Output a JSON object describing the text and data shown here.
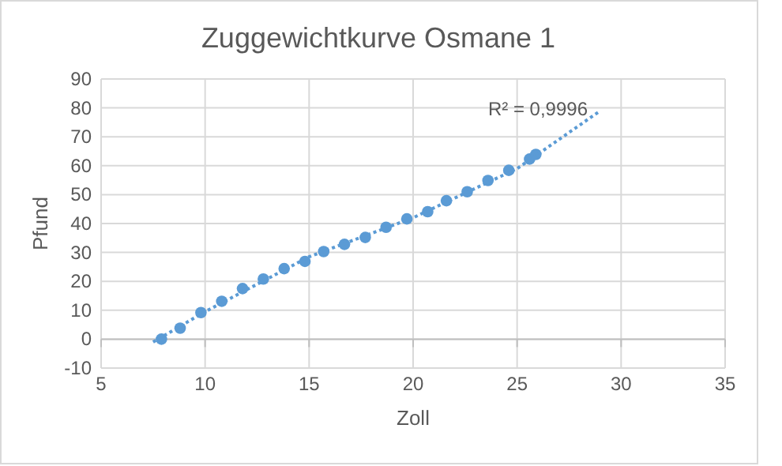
{
  "chart_data": {
    "type": "scatter",
    "title": "Zuggewichtkurve Osmane 1",
    "xlabel": "Zoll",
    "ylabel": "Pfund",
    "xlim": [
      5,
      35
    ],
    "xticks": [
      5,
      10,
      15,
      20,
      25,
      30,
      35
    ],
    "ylim": [
      -10,
      90
    ],
    "yticks": [
      -10,
      0,
      10,
      20,
      30,
      40,
      50,
      60,
      70,
      80,
      90
    ],
    "grid": true,
    "series": [
      {
        "color": "#5b9bd5",
        "marker": "circle",
        "x": [
          7.9,
          8.8,
          9.8,
          10.8,
          11.8,
          12.8,
          13.8,
          14.8,
          15.7,
          16.7,
          17.7,
          18.7,
          19.7,
          20.7,
          21.6,
          22.6,
          23.6,
          24.6,
          25.6,
          25.9
        ],
        "values": [
          0,
          3.8,
          9.2,
          13.1,
          17.5,
          20.8,
          24.4,
          26.9,
          30.3,
          32.8,
          35.2,
          38.7,
          41.6,
          44.1,
          47.9,
          51.0,
          54.9,
          58.4,
          62.3,
          63.9
        ]
      },
      {
        "type": "line",
        "color": "#5b9bd5",
        "marker": "none",
        "line_style": "dotted",
        "x": [
          7.5,
          10,
          15,
          20,
          25,
          29
        ],
        "values": [
          -1,
          9.5,
          28.5,
          42,
          59,
          79
        ]
      }
    ],
    "annotations": [
      {
        "text": "R² = 0,9996",
        "x": 29,
        "y": 79
      }
    ]
  }
}
